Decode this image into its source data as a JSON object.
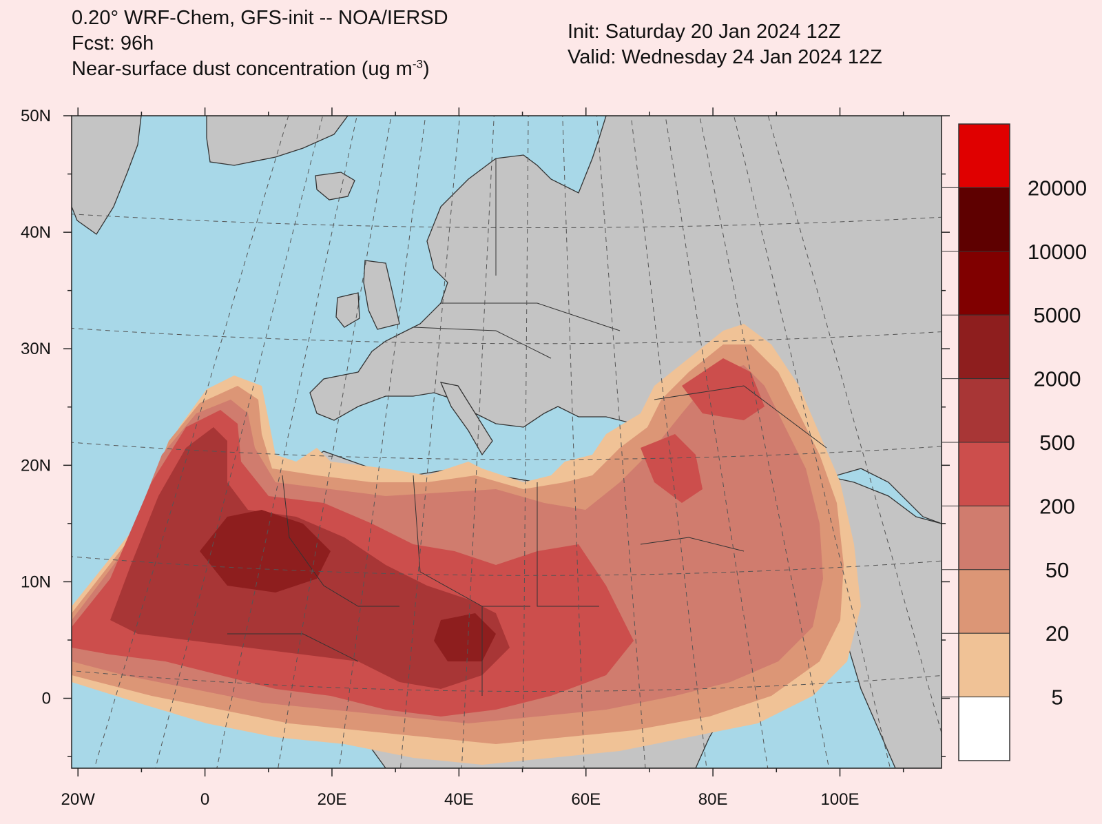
{
  "header": {
    "model_line": "0.20° WRF-Chem, GFS-init -- NOA/IERSD",
    "forecast_line": "Fcst: 96h",
    "field_line_prefix": "Near-surface dust concentration (ug m",
    "field_line_exp": "-3",
    "field_line_suffix": ")",
    "init_line": "Init: Saturday 20 Jan 2024  12Z",
    "valid_line": "Valid: Wednesday 24 Jan 2024  12Z"
  },
  "axes": {
    "y_labels": [
      "50N",
      "40N",
      "30N",
      "20N",
      "10N",
      "0"
    ],
    "x_labels": [
      "20W",
      "0",
      "20E",
      "40E",
      "60E",
      "80E",
      "100E"
    ],
    "lon_range": [
      -21,
      116
    ],
    "lat_range": [
      -6,
      50
    ]
  },
  "colorbar": {
    "labels": [
      "20000",
      "10000",
      "5000",
      "2000",
      "500",
      "200",
      "50",
      "20",
      "5"
    ],
    "colors": [
      "#e00000",
      "#5e0000",
      "#800000",
      "#8e1e1e",
      "#a83636",
      "#cc4e4c",
      "#d07c6e",
      "#dc9676",
      "#f0c296",
      "#ffffff"
    ]
  },
  "map_colors": {
    "ocean": "#a8d8e8",
    "land": "#c4c4c4",
    "background": "#fde8e8"
  }
}
